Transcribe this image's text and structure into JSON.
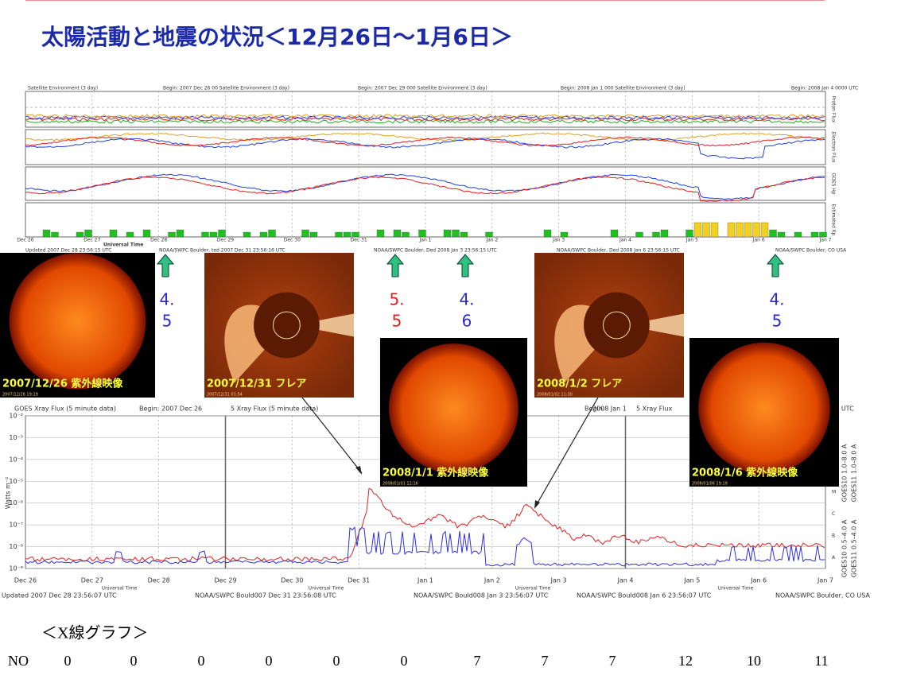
{
  "header": {
    "title": "太陽活動と地震の状況＜12月26日～1月6日＞"
  },
  "top_panel": {
    "headers": [
      "Satellite Environment (3 day)",
      "Begin: 2007 Dec 26 00 Satellite Environment (3 day)",
      "Begin: 2007 Dec 29 000 Satellite Environment (3 day)",
      "Begin: 2008 Jan 1 000 Satellite Environment (3 day)",
      "Begin: 2008 Jan 4 0000 UTC"
    ],
    "side_labels": [
      "Proton Flux",
      "Electron Flux",
      "GOES Hp",
      "Estimated Kp"
    ],
    "days": [
      "Dec 26",
      "Dec 27",
      "Dec 28",
      "Dec 29",
      "Dec 30",
      "Dec 31",
      "Jan 1",
      "Jan 2",
      "Jan 3",
      "Jan 4",
      "Jan 5",
      "Jan 6",
      "Jan 7"
    ],
    "axis_label": "Universal Time",
    "footers": [
      "Updated 2007 Dec 28 23:56:15 UTC",
      "NOAA/SWPC Boulder, ted 2007 Dec 31 23:56:16 UTC",
      "NOAA/SWPC Boulder, Ded 2008 Jan 3 23:56:15 UTC",
      "NOAA/SWPC Boulder, Ded 2008 Jan 6 23:56:15 UTC",
      "NOAA/SWPC Boulder, CO USA"
    ]
  },
  "earthquakes": [
    {
      "top": "4.",
      "bottom": "5",
      "color": "#2a2ad0"
    },
    {
      "top": "5.",
      "bottom": "5",
      "color": "#e02020"
    },
    {
      "top": "4.",
      "bottom": "6",
      "color": "#2a2ad0"
    },
    {
      "top": "4.",
      "bottom": "5",
      "color": "#2a2ad0"
    }
  ],
  "images": [
    {
      "caption": "2007/12/26 紫外線映像",
      "stamp": "2007/12/26 19:19"
    },
    {
      "caption": "2007/12/31 フレア",
      "stamp": "2007/12/31 01:54"
    },
    {
      "caption": "2008/1/1 紫外線映像",
      "stamp": "2008/01/01 12:16"
    },
    {
      "caption": "2008/1/2 フレア",
      "stamp": "2008/01/02 11:30"
    },
    {
      "caption": "2008/1/6 紫外線映像",
      "stamp": "2008/01/06 19:19"
    }
  ],
  "xray_panel": {
    "headers": [
      "GOES Xray Flux (5 minute data)",
      "Begin: 2007 Dec 26",
      "5 Xray Flux (5 minute data)",
      "Begin:",
      "2008 Jan 1",
      "5 Xray Flux",
      "000 UTC"
    ],
    "y_label": "Watts m⁻²",
    "y_ticks": [
      "10⁻²",
      "10⁻³",
      "10⁻⁴",
      "10⁻⁵",
      "10⁻⁶",
      "10⁻⁷",
      "10⁻⁸",
      "10⁻⁹"
    ],
    "classes": [
      "X",
      "M",
      "C",
      "B",
      "A"
    ],
    "legend": [
      {
        "name": "GOES10 1.0–8.0 A",
        "color": "#f0a0a0"
      },
      {
        "name": "GOES11 1.0–8.0 A",
        "color": "#e02020"
      },
      {
        "name": "GOES10 0.5–4.0 A",
        "color": "#e0c040"
      },
      {
        "name": "GOES11 0.5–4.0 A",
        "color": "#3030e0"
      }
    ],
    "days": [
      "Dec 26",
      "Dec 27",
      "Dec 28",
      "Dec 29",
      "Dec 30",
      "Dec 31",
      "Jan 1",
      "Jan 2",
      "Jan 3",
      "Jan 4",
      "Jan 5",
      "Jan 6",
      "Jan 7"
    ],
    "axis_label": "Universal Time",
    "footers": [
      "Updated 2007 Dec 28 23:56:07 UTC",
      "NOAA/SWPC Bould007 Dec 31 23:56:08 UTC",
      "NOAA/SWPC Bould008 Jan 3 23:56:07 UTC",
      "NOAA/SWPC Bould008 Jan 6 23:56:07 UTC",
      "NOAA/SWPC Boulder, CO USA"
    ]
  },
  "footer": {
    "caption": "＜X線グラフ＞",
    "row_label": "NO",
    "values": [
      0,
      0,
      0,
      0,
      0,
      0,
      7,
      7,
      7,
      12,
      10,
      11
    ]
  }
}
